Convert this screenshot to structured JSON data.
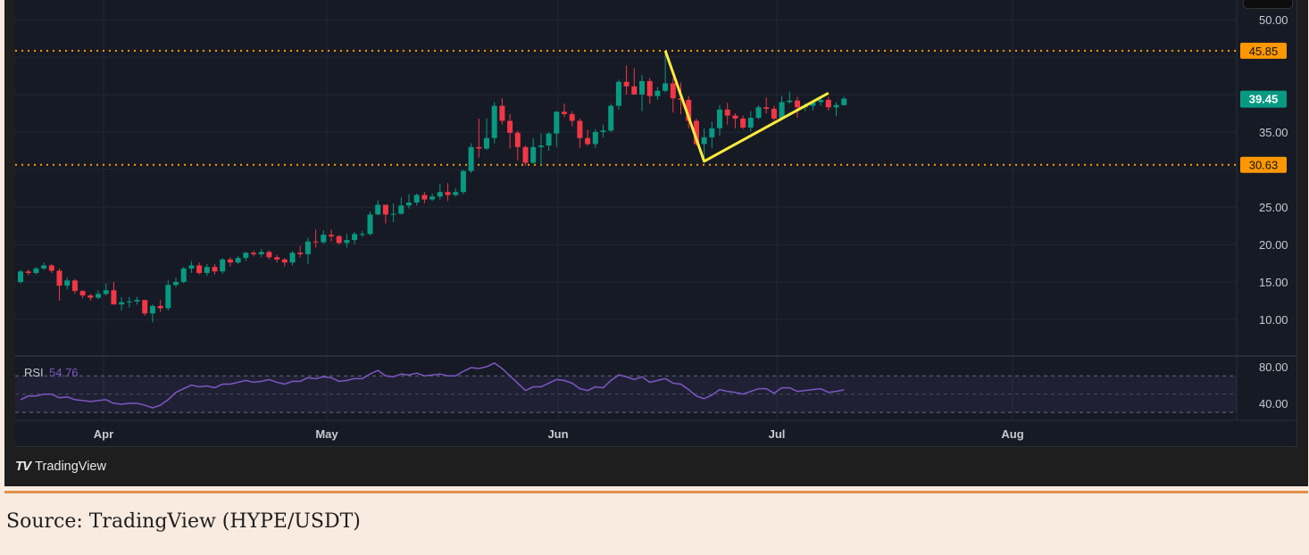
{
  "caption": "Source: TradingView (HYPE/USDT)",
  "logo_text": "TradingView",
  "colors": {
    "up": "#089981",
    "down": "#f23645",
    "level": "#ff9800",
    "trendline": "#ffeb3b",
    "rsi": "#7e57c2",
    "last_price": "#089981"
  },
  "chart_data": {
    "type": "candlestick",
    "symbol": "HYPE/USDT",
    "y_ticks": [
      "50.00",
      "45.00",
      "40.00",
      "35.00",
      "30.00",
      "25.00",
      "20.00",
      "15.00",
      "10.00"
    ],
    "y_tick_values": [
      50,
      45,
      40,
      35,
      30,
      25,
      20,
      15,
      10
    ],
    "ylim": [
      5.5,
      52.5
    ],
    "x_ticks": [
      "Apr",
      "May",
      "Jun",
      "Jul",
      "Aug"
    ],
    "levels": [
      {
        "value": 45.85,
        "label": "45.85"
      },
      {
        "value": 30.63,
        "label": "30.63"
      }
    ],
    "last_price": {
      "value": 39.45,
      "label": "39.45"
    },
    "trendline_points": [
      [
        83,
        45.85
      ],
      [
        88,
        31.1
      ],
      [
        104,
        40.2
      ]
    ],
    "open": [
      15.0,
      16.4,
      16.2,
      16.8,
      17.2,
      16.5,
      14.5,
      15.2,
      13.8,
      13.2,
      12.9,
      13.4,
      13.9,
      12.0,
      12.3,
      12.4,
      12.6,
      10.8,
      11.8,
      11.5,
      14.6,
      15.0,
      16.8,
      17.2,
      16.2,
      17.0,
      16.4,
      18.0,
      17.6,
      18.2,
      18.9,
      18.7,
      19.0,
      18.3,
      18.0,
      17.6,
      18.9,
      18.7,
      20.4,
      20.3,
      21.3,
      21.1,
      20.2,
      20.6,
      21.4,
      21.4,
      24.0,
      25.3,
      24.0,
      24.1,
      25.2,
      25.6,
      26.6,
      26.0,
      26.4,
      27.0,
      26.6,
      27.0,
      29.8,
      33.0,
      32.8,
      34.2,
      38.5,
      36.5,
      34.9,
      33.0,
      30.9,
      33.0,
      33.2,
      34.8,
      37.7,
      37.4,
      36.5,
      34.2,
      33.4,
      35.0,
      35.2,
      38.5,
      41.7,
      41.1,
      40.0,
      41.8,
      39.8,
      40.5,
      41.5,
      39.5,
      39.3,
      36.5,
      33.4,
      34.3,
      35.5,
      38.0,
      37.2,
      36.8,
      35.6,
      36.9,
      38.3,
      38.1,
      36.8,
      39.0,
      39.2,
      38.3,
      38.5,
      39.0,
      39.3,
      38.3,
      38.6
    ],
    "high": [
      16.6,
      16.7,
      17.0,
      17.6,
      17.4,
      16.8,
      15.6,
      15.4,
      13.9,
      13.4,
      13.9,
      14.8,
      15.0,
      13.0,
      13.0,
      13.0,
      12.6,
      12.0,
      12.6,
      15.2,
      15.6,
      17.0,
      17.8,
      17.6,
      17.4,
      17.4,
      18.2,
      18.3,
      18.5,
      19.0,
      19.2,
      19.4,
      19.2,
      18.6,
      18.2,
      19.1,
      19.8,
      20.9,
      22.0,
      21.9,
      22.0,
      21.3,
      21.4,
      21.7,
      21.8,
      24.4,
      25.9,
      25.3,
      25.5,
      26.3,
      26.7,
      26.8,
      27.0,
      26.8,
      28.1,
      28.2,
      27.5,
      30.0,
      33.5,
      36.8,
      36.8,
      39.0,
      39.5,
      37.4,
      35.2,
      33.2,
      34.2,
      34.8,
      35.0,
      37.8,
      38.8,
      37.8,
      36.8,
      35.3,
      35.4,
      36.0,
      38.8,
      42.0,
      43.9,
      43.5,
      42.6,
      42.2,
      41.0,
      45.85,
      42.2,
      41.6,
      39.8,
      36.8,
      35.5,
      36.4,
      38.6,
      38.9,
      37.5,
      37.2,
      37.8,
      38.6,
      39.6,
      38.5,
      39.8,
      40.4,
      39.7,
      38.8,
      39.2,
      39.6,
      39.7,
      39.0,
      39.7
    ],
    "low": [
      14.8,
      15.9,
      16.0,
      16.6,
      16.2,
      12.5,
      14.0,
      13.4,
      12.8,
      12.5,
      12.7,
      13.2,
      12.0,
      11.2,
      11.6,
      12.0,
      10.5,
      9.6,
      11.0,
      11.2,
      14.3,
      14.8,
      16.2,
      16.0,
      15.8,
      16.0,
      16.1,
      17.1,
      17.4,
      17.8,
      18.4,
      18.3,
      18.0,
      17.6,
      17.1,
      17.2,
      18.3,
      17.4,
      19.6,
      20.1,
      20.4,
      20.0,
      19.6,
      20.0,
      21.0,
      21.2,
      23.9,
      22.8,
      23.0,
      24.0,
      24.8,
      25.2,
      25.5,
      25.8,
      26.0,
      25.8,
      26.4,
      26.7,
      29.5,
      31.6,
      32.6,
      33.5,
      36.0,
      32.8,
      31.2,
      30.5,
      30.8,
      30.6,
      32.5,
      33.0,
      37.0,
      35.8,
      32.9,
      33.2,
      32.9,
      34.3,
      35.0,
      38.0,
      40.0,
      40.0,
      37.8,
      38.8,
      39.3,
      40.3,
      37.6,
      37.4,
      35.5,
      33.2,
      31.1,
      32.9,
      34.5,
      36.0,
      35.5,
      35.4,
      35.1,
      36.7,
      37.5,
      36.5,
      36.6,
      38.8,
      36.9,
      37.8,
      37.9,
      38.5,
      37.9,
      37.1,
      38.5
    ],
    "close": [
      16.4,
      16.2,
      16.8,
      17.2,
      16.5,
      14.5,
      15.2,
      13.8,
      13.2,
      12.9,
      13.4,
      13.9,
      12.0,
      12.3,
      12.4,
      12.6,
      10.8,
      11.8,
      11.5,
      14.6,
      15.0,
      16.8,
      17.2,
      16.2,
      17.0,
      16.4,
      18.0,
      17.6,
      18.2,
      18.9,
      18.7,
      19.0,
      18.3,
      18.0,
      17.6,
      18.9,
      18.7,
      20.4,
      20.3,
      21.3,
      21.1,
      20.2,
      20.6,
      21.4,
      21.4,
      24.0,
      25.3,
      24.0,
      24.1,
      25.2,
      25.6,
      26.6,
      26.0,
      26.4,
      27.0,
      26.6,
      27.0,
      29.8,
      33.0,
      32.8,
      34.2,
      38.5,
      36.5,
      34.9,
      33.0,
      30.9,
      33.0,
      33.2,
      34.8,
      37.7,
      37.4,
      36.5,
      34.2,
      33.4,
      35.0,
      35.2,
      38.5,
      41.7,
      41.1,
      40.0,
      41.8,
      39.8,
      40.5,
      41.5,
      39.5,
      39.3,
      36.5,
      33.4,
      34.3,
      35.5,
      38.0,
      37.2,
      36.8,
      35.6,
      36.9,
      38.3,
      38.1,
      36.8,
      39.0,
      39.2,
      38.3,
      38.5,
      39.0,
      39.3,
      38.3,
      38.6,
      39.45
    ],
    "rsi": {
      "label": "RSI",
      "value_label": "54.76",
      "y_ticks": [
        "80.00",
        "40.00"
      ],
      "y_tick_values": [
        80,
        40
      ],
      "bands": [
        70,
        50,
        30
      ],
      "values": [
        44,
        48,
        48,
        50,
        50,
        46,
        47,
        44,
        43,
        42,
        43,
        44,
        40,
        39,
        40,
        40,
        38,
        35,
        38,
        44,
        52,
        56,
        60,
        58,
        59,
        57,
        61,
        61,
        63,
        65,
        63,
        64,
        66,
        63,
        61,
        64,
        64,
        68,
        67,
        69,
        68,
        64,
        65,
        67,
        67,
        72,
        76,
        70,
        69,
        72,
        71,
        73,
        70,
        71,
        72,
        70,
        70,
        75,
        79,
        78,
        80,
        84,
        78,
        70,
        62,
        54,
        58,
        58,
        62,
        66,
        65,
        62,
        56,
        54,
        58,
        57,
        65,
        71,
        69,
        66,
        69,
        63,
        65,
        67,
        62,
        61,
        55,
        48,
        45,
        49,
        55,
        53,
        52,
        50,
        53,
        56,
        56,
        51,
        57,
        57,
        53,
        54,
        55,
        56,
        52,
        53,
        54.76
      ]
    }
  }
}
